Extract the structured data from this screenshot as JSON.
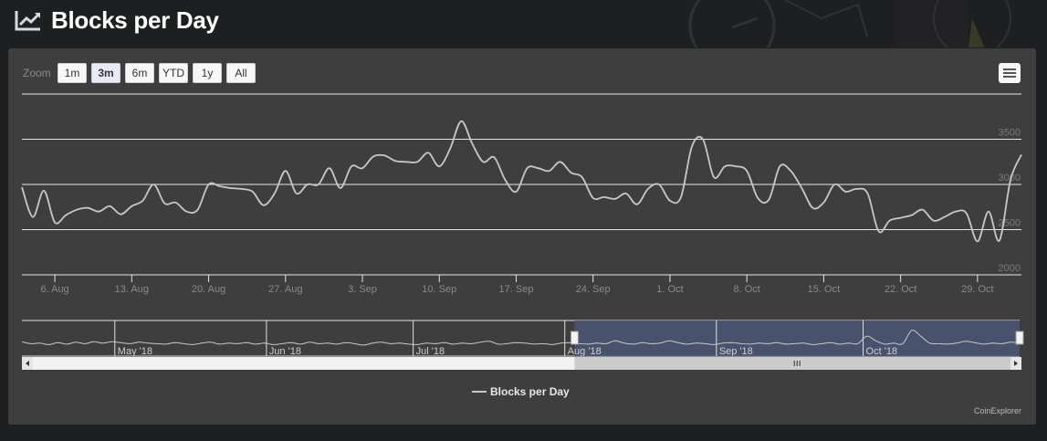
{
  "page": {
    "title": "Blocks per Day"
  },
  "zoom": {
    "label": "Zoom",
    "buttons": [
      "1m",
      "3m",
      "6m",
      "YTD",
      "1y",
      "All"
    ],
    "active": "3m"
  },
  "credits": "CoinExplorer",
  "colors": {
    "line": "#c8c8c8",
    "panel": "#3e3e3e",
    "nav_mask": "#4a5472",
    "grid": "#e6e6e6"
  },
  "chart_data": {
    "type": "line",
    "title": "",
    "legend": {
      "entries": [
        "Blocks per Day"
      ],
      "placement": "bottom-center"
    },
    "ylim": [
      2000,
      4000
    ],
    "y_ticks": [
      2000,
      2500,
      3000,
      3500
    ],
    "x_range": [
      "2018-08-03",
      "2018-11-02"
    ],
    "x_ticks": [
      {
        "date": "2018-08-06",
        "label": "6. Aug"
      },
      {
        "date": "2018-08-13",
        "label": "13. Aug"
      },
      {
        "date": "2018-08-20",
        "label": "20. Aug"
      },
      {
        "date": "2018-08-27",
        "label": "27. Aug"
      },
      {
        "date": "2018-09-03",
        "label": "3. Sep"
      },
      {
        "date": "2018-09-10",
        "label": "10. Sep"
      },
      {
        "date": "2018-09-17",
        "label": "17. Sep"
      },
      {
        "date": "2018-09-24",
        "label": "24. Sep"
      },
      {
        "date": "2018-10-01",
        "label": "1. Oct"
      },
      {
        "date": "2018-10-08",
        "label": "8. Oct"
      },
      {
        "date": "2018-10-15",
        "label": "15. Oct"
      },
      {
        "date": "2018-10-22",
        "label": "22. Oct"
      },
      {
        "date": "2018-10-29",
        "label": "29. Oct"
      }
    ],
    "series": [
      {
        "name": "Blocks per Day",
        "points": [
          [
            "2018-08-03",
            2970
          ],
          [
            "2018-08-04",
            2640
          ],
          [
            "2018-08-05",
            2930
          ],
          [
            "2018-08-06",
            2580
          ],
          [
            "2018-08-07",
            2660
          ],
          [
            "2018-08-08",
            2720
          ],
          [
            "2018-08-09",
            2740
          ],
          [
            "2018-08-10",
            2700
          ],
          [
            "2018-08-11",
            2760
          ],
          [
            "2018-08-12",
            2670
          ],
          [
            "2018-08-13",
            2760
          ],
          [
            "2018-08-14",
            2820
          ],
          [
            "2018-08-15",
            3000
          ],
          [
            "2018-08-16",
            2790
          ],
          [
            "2018-08-17",
            2800
          ],
          [
            "2018-08-18",
            2700
          ],
          [
            "2018-08-19",
            2720
          ],
          [
            "2018-08-20",
            3000
          ],
          [
            "2018-08-21",
            2980
          ],
          [
            "2018-08-22",
            2960
          ],
          [
            "2018-08-23",
            2950
          ],
          [
            "2018-08-24",
            2920
          ],
          [
            "2018-08-25",
            2770
          ],
          [
            "2018-08-26",
            2900
          ],
          [
            "2018-08-27",
            3150
          ],
          [
            "2018-08-28",
            2900
          ],
          [
            "2018-08-29",
            3000
          ],
          [
            "2018-08-30",
            3000
          ],
          [
            "2018-08-31",
            3180
          ],
          [
            "2018-09-01",
            2960
          ],
          [
            "2018-09-02",
            3200
          ],
          [
            "2018-09-03",
            3180
          ],
          [
            "2018-09-04",
            3310
          ],
          [
            "2018-09-05",
            3320
          ],
          [
            "2018-09-06",
            3260
          ],
          [
            "2018-09-07",
            3250
          ],
          [
            "2018-09-08",
            3250
          ],
          [
            "2018-09-09",
            3350
          ],
          [
            "2018-09-10",
            3200
          ],
          [
            "2018-09-11",
            3400
          ],
          [
            "2018-09-12",
            3700
          ],
          [
            "2018-09-13",
            3450
          ],
          [
            "2018-09-14",
            3250
          ],
          [
            "2018-09-15",
            3300
          ],
          [
            "2018-09-16",
            3050
          ],
          [
            "2018-09-17",
            2920
          ],
          [
            "2018-09-18",
            3180
          ],
          [
            "2018-09-19",
            3180
          ],
          [
            "2018-09-20",
            3150
          ],
          [
            "2018-09-21",
            3250
          ],
          [
            "2018-09-22",
            3130
          ],
          [
            "2018-09-23",
            3080
          ],
          [
            "2018-09-24",
            2850
          ],
          [
            "2018-09-25",
            2860
          ],
          [
            "2018-09-26",
            2840
          ],
          [
            "2018-09-27",
            2900
          ],
          [
            "2018-09-28",
            2780
          ],
          [
            "2018-09-29",
            2950
          ],
          [
            "2018-09-30",
            3000
          ],
          [
            "2018-10-01",
            2820
          ],
          [
            "2018-10-02",
            2860
          ],
          [
            "2018-10-03",
            3420
          ],
          [
            "2018-10-04",
            3500
          ],
          [
            "2018-10-05",
            3080
          ],
          [
            "2018-10-06",
            3200
          ],
          [
            "2018-10-07",
            3200
          ],
          [
            "2018-10-08",
            3150
          ],
          [
            "2018-10-09",
            2850
          ],
          [
            "2018-10-10",
            2830
          ],
          [
            "2018-10-11",
            3200
          ],
          [
            "2018-10-12",
            3150
          ],
          [
            "2018-10-13",
            2960
          ],
          [
            "2018-10-14",
            2740
          ],
          [
            "2018-10-15",
            2800
          ],
          [
            "2018-10-16",
            3000
          ],
          [
            "2018-10-17",
            2920
          ],
          [
            "2018-10-18",
            2950
          ],
          [
            "2018-10-19",
            2900
          ],
          [
            "2018-10-20",
            2480
          ],
          [
            "2018-10-21",
            2600
          ],
          [
            "2018-10-22",
            2630
          ],
          [
            "2018-10-23",
            2660
          ],
          [
            "2018-10-24",
            2720
          ],
          [
            "2018-10-25",
            2600
          ],
          [
            "2018-10-26",
            2640
          ],
          [
            "2018-10-27",
            2700
          ],
          [
            "2018-10-28",
            2680
          ],
          [
            "2018-10-29",
            2370
          ],
          [
            "2018-10-30",
            2700
          ],
          [
            "2018-10-31",
            2380
          ],
          [
            "2018-11-01",
            3050
          ],
          [
            "2018-11-02",
            3330
          ]
        ]
      }
    ],
    "navigator": {
      "x_range": [
        "2018-04-12",
        "2018-11-02"
      ],
      "selected": [
        "2018-08-03",
        "2018-11-02"
      ],
      "month_labels": [
        {
          "date": "2018-05-01",
          "label": "May '18"
        },
        {
          "date": "2018-06-01",
          "label": "Jun '18"
        },
        {
          "date": "2018-07-01",
          "label": "Jul '18"
        },
        {
          "date": "2018-08-01",
          "label": "Aug '18"
        },
        {
          "date": "2018-09-01",
          "label": "Sep '18"
        },
        {
          "date": "2018-10-01",
          "label": "Oct '18"
        }
      ],
      "values": [
        2960,
        2880,
        2900,
        2840,
        2920,
        2860,
        2940,
        2880,
        2960,
        2900,
        2960,
        2920,
        2880,
        2940,
        2900,
        2880,
        2860,
        2920,
        2880,
        2840,
        2900,
        2940,
        2860,
        2900,
        2880,
        2920,
        2860,
        2900,
        2840,
        2880,
        2920,
        2860,
        2940,
        2880,
        2900,
        2860,
        2920,
        2880,
        2820,
        2900,
        2940,
        2880,
        2900,
        2860,
        2840,
        2900,
        2880,
        2920,
        2860,
        2900,
        2880,
        2940,
        2980,
        2860,
        2880,
        2920,
        2900,
        2860,
        2880,
        2840,
        2900,
        2920,
        2880,
        2860,
        2900,
        2880,
        3000,
        2900,
        2860,
        2920,
        2880,
        2900,
        3000,
        2920,
        2860,
        2900,
        2880,
        2840,
        2900,
        2920,
        2880,
        2860,
        2900,
        2880,
        2920,
        2860,
        2880,
        2900,
        2840,
        2880,
        2920,
        2860,
        2900,
        2880,
        3200,
        3000,
        2860,
        2900,
        2880,
        3450,
        3200,
        2900,
        2880,
        2860,
        2900,
        2980,
        2920,
        2860,
        2900,
        2880,
        2940,
        2900
      ]
    }
  }
}
